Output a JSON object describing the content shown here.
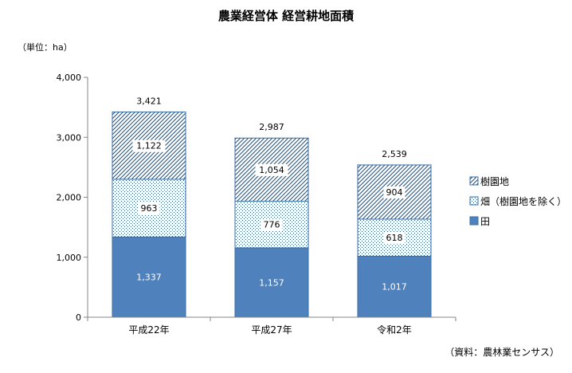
{
  "chart_data": {
    "type": "bar",
    "stacked": true,
    "title": "農業経営体 経営耕地面積",
    "unit_label": "（単位：ha）",
    "source": "（資料：農林業センサス）",
    "categories": [
      "平成22年",
      "平成27年",
      "令和2年"
    ],
    "series": [
      {
        "name": "田",
        "values": [
          1337,
          1157,
          1017
        ],
        "pattern": "solid",
        "color": "#4F81BD"
      },
      {
        "name": "畑（樹園地を除く）",
        "values": [
          963,
          776,
          618
        ],
        "pattern": "dots",
        "color": "#4F81BD"
      },
      {
        "name": "樹園地",
        "values": [
          1122,
          1054,
          904
        ],
        "pattern": "diagonal",
        "color": "#4F81BD"
      }
    ],
    "totals": [
      3421,
      2987,
      2539
    ],
    "total_labels": [
      "3,421",
      "2,987",
      "2,539"
    ],
    "value_labels": [
      [
        "1,337",
        "1,157",
        "1,017"
      ],
      [
        "963",
        "776",
        "618"
      ],
      [
        "1,122",
        "1,054",
        "904"
      ]
    ],
    "y_ticks": [
      0,
      1000,
      2000,
      3000,
      4000
    ],
    "y_tick_labels": [
      "0",
      "1,000",
      "2,000",
      "3,000",
      "4,000"
    ],
    "ylim": [
      0,
      4000
    ],
    "legend_placement": "right",
    "grid": false
  }
}
